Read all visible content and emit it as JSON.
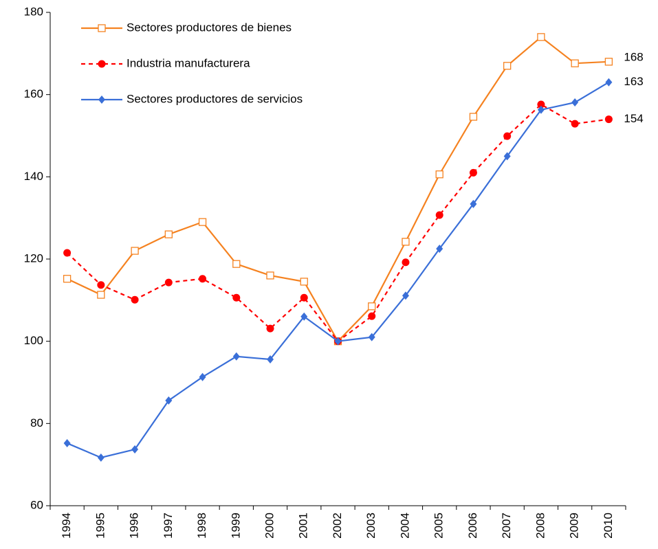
{
  "chart_data": {
    "type": "line",
    "categories": [
      "1994",
      "1995",
      "1996",
      "1997",
      "1998",
      "1999",
      "2000",
      "2001",
      "2002",
      "2003",
      "2004",
      "2005",
      "2006",
      "2007",
      "2008",
      "2009",
      "2010"
    ],
    "series": [
      {
        "name": "Sectores productores de bienes",
        "color": "#f58220",
        "marker": "square",
        "dash": false,
        "values": [
          115.2,
          111.3,
          122,
          126,
          129,
          118.8,
          116,
          114.5,
          100,
          108.5,
          124.2,
          140.6,
          154.6,
          167,
          174,
          167.6,
          168
        ]
      },
      {
        "name": "Industria manufacturera",
        "color": "#ff0000",
        "marker": "circle",
        "dash": true,
        "values": [
          121.5,
          113.7,
          110.1,
          114.3,
          115.2,
          110.6,
          103.1,
          110.6,
          100,
          106.1,
          119.2,
          130.7,
          141,
          149.9,
          157.6,
          152.9,
          154
        ]
      },
      {
        "name": "Sectores productores de servicios",
        "color": "#3a6fd8",
        "marker": "diamond",
        "dash": false,
        "values": [
          75.2,
          71.7,
          73.7,
          85.6,
          91.3,
          96.3,
          95.6,
          106,
          100,
          101,
          111.1,
          122.5,
          133.4,
          145,
          156.3,
          158.1,
          163
        ]
      }
    ],
    "ylim": [
      60,
      180
    ],
    "yticks": [
      60,
      80,
      100,
      120,
      140,
      160,
      180
    ],
    "grid": false,
    "legend": "top-left"
  }
}
